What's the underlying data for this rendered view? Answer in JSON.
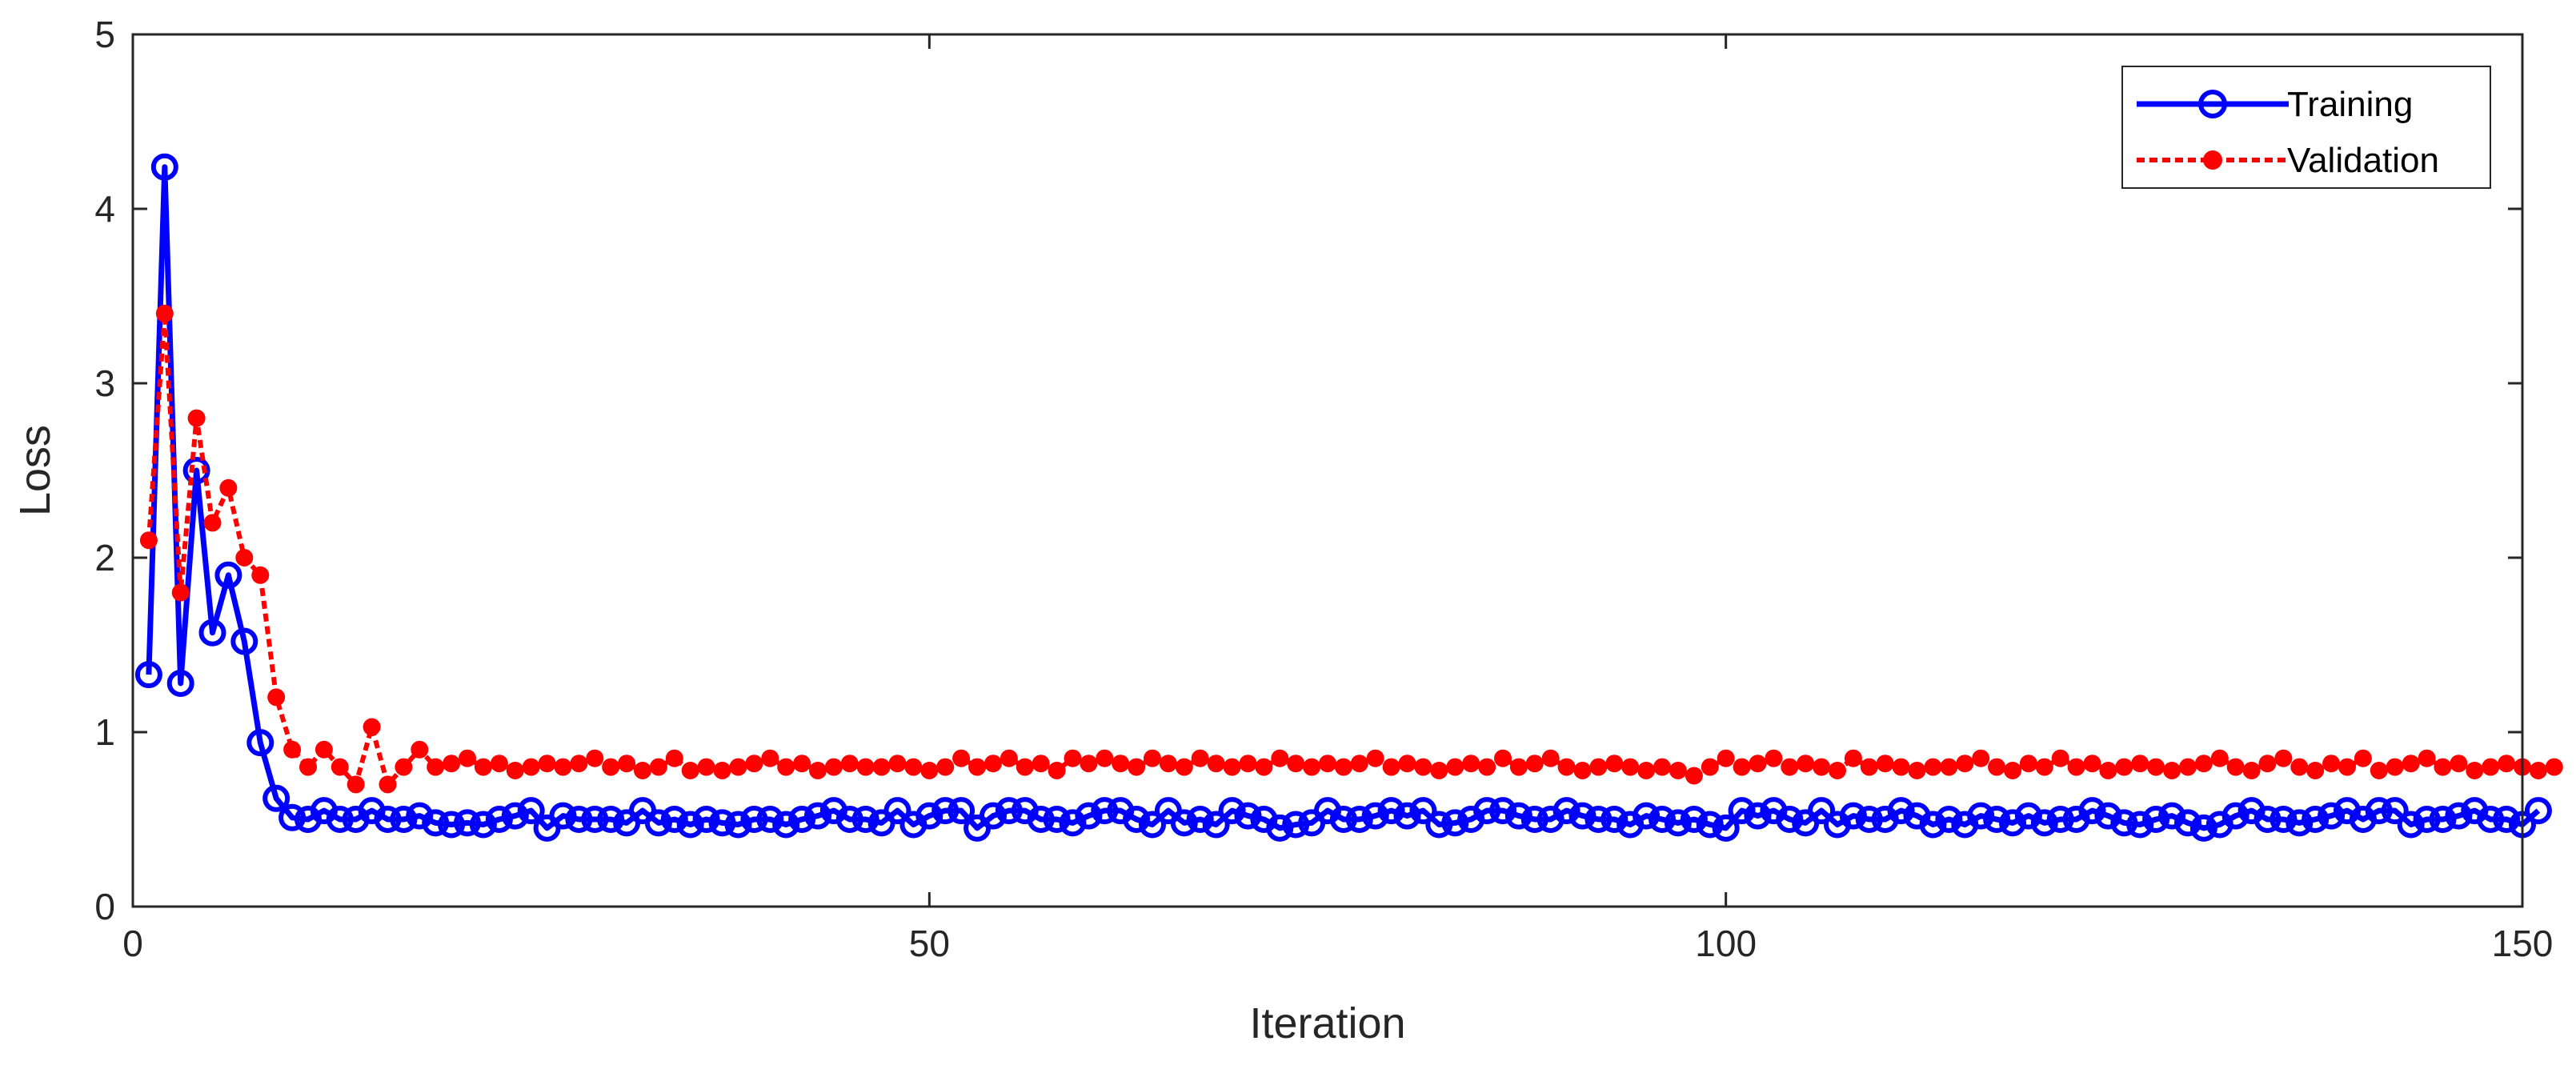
{
  "chart_data": {
    "type": "line",
    "title": "",
    "xlabel": "Iteration",
    "ylabel": "Loss",
    "xlim": [
      0,
      150
    ],
    "ylim": [
      0,
      5
    ],
    "xticks": [
      0,
      50,
      100,
      150
    ],
    "yticks": [
      0,
      1,
      2,
      3,
      4,
      5
    ],
    "grid": false,
    "legend": "top-right",
    "series": [
      {
        "name": "Training",
        "color": "#0000ff",
        "line_style": "solid",
        "marker": "open-circle",
        "values": [
          1.33,
          4.24,
          1.28,
          2.5,
          1.57,
          1.9,
          1.52,
          0.94,
          0.62,
          0.51,
          0.5,
          0.55,
          0.5,
          0.5,
          0.55,
          0.5,
          0.5,
          0.52,
          0.48,
          0.47,
          0.48,
          0.47,
          0.5,
          0.52,
          0.55,
          0.45,
          0.52,
          0.5,
          0.5,
          0.5,
          0.48,
          0.55,
          0.48,
          0.5,
          0.47,
          0.5,
          0.48,
          0.47,
          0.5,
          0.5,
          0.47,
          0.5,
          0.52,
          0.55,
          0.5,
          0.5,
          0.48,
          0.55,
          0.47,
          0.52,
          0.55,
          0.55,
          0.45,
          0.52,
          0.55,
          0.55,
          0.5,
          0.5,
          0.48,
          0.52,
          0.55,
          0.55,
          0.5,
          0.47,
          0.55,
          0.48,
          0.5,
          0.47,
          0.55,
          0.52,
          0.5,
          0.45,
          0.47,
          0.48,
          0.55,
          0.5,
          0.5,
          0.52,
          0.55,
          0.52,
          0.55,
          0.47,
          0.48,
          0.5,
          0.55,
          0.55,
          0.52,
          0.5,
          0.5,
          0.55,
          0.52,
          0.5,
          0.5,
          0.47,
          0.52,
          0.5,
          0.48,
          0.5,
          0.47,
          0.45,
          0.55,
          0.52,
          0.55,
          0.5,
          0.48,
          0.55,
          0.47,
          0.52,
          0.5,
          0.5,
          0.55,
          0.52,
          0.47,
          0.5,
          0.47,
          0.52,
          0.5,
          0.48,
          0.52,
          0.48,
          0.5,
          0.5,
          0.55,
          0.52,
          0.48,
          0.47,
          0.5,
          0.52,
          0.48,
          0.45,
          0.47,
          0.52,
          0.55,
          0.5,
          0.5,
          0.48,
          0.5,
          0.52,
          0.55,
          0.5,
          0.55,
          0.55,
          0.47,
          0.5,
          0.5,
          0.52,
          0.55,
          0.5,
          0.5,
          0.47,
          0.55
        ]
      },
      {
        "name": "Validation",
        "color": "#ff0000",
        "line_style": "dotted",
        "marker": "filled-dot",
        "values": [
          2.1,
          3.4,
          1.8,
          2.8,
          2.2,
          2.4,
          2.0,
          1.9,
          1.2,
          0.9,
          0.8,
          0.9,
          0.8,
          0.7,
          1.03,
          0.7,
          0.8,
          0.9,
          0.8,
          0.82,
          0.85,
          0.8,
          0.82,
          0.78,
          0.8,
          0.82,
          0.8,
          0.82,
          0.85,
          0.8,
          0.82,
          0.78,
          0.8,
          0.85,
          0.78,
          0.8,
          0.78,
          0.8,
          0.82,
          0.85,
          0.8,
          0.82,
          0.78,
          0.8,
          0.82,
          0.8,
          0.8,
          0.82,
          0.8,
          0.78,
          0.8,
          0.85,
          0.8,
          0.82,
          0.85,
          0.8,
          0.82,
          0.78,
          0.85,
          0.82,
          0.85,
          0.82,
          0.8,
          0.85,
          0.82,
          0.8,
          0.85,
          0.82,
          0.8,
          0.82,
          0.8,
          0.85,
          0.82,
          0.8,
          0.82,
          0.8,
          0.82,
          0.85,
          0.8,
          0.82,
          0.8,
          0.78,
          0.8,
          0.82,
          0.8,
          0.85,
          0.8,
          0.82,
          0.85,
          0.8,
          0.78,
          0.8,
          0.82,
          0.8,
          0.78,
          0.8,
          0.78,
          0.75,
          0.8,
          0.85,
          0.8,
          0.82,
          0.85,
          0.8,
          0.82,
          0.8,
          0.78,
          0.85,
          0.8,
          0.82,
          0.8,
          0.78,
          0.8,
          0.8,
          0.82,
          0.85,
          0.8,
          0.78,
          0.82,
          0.8,
          0.85,
          0.8,
          0.82,
          0.78,
          0.8,
          0.82,
          0.8,
          0.78,
          0.8,
          0.82,
          0.85,
          0.8,
          0.78,
          0.82,
          0.85,
          0.8,
          0.78,
          0.82,
          0.8,
          0.85,
          0.78,
          0.8,
          0.82,
          0.85,
          0.8,
          0.82,
          0.78,
          0.8,
          0.82,
          0.8,
          0.78,
          0.8
        ]
      }
    ]
  }
}
